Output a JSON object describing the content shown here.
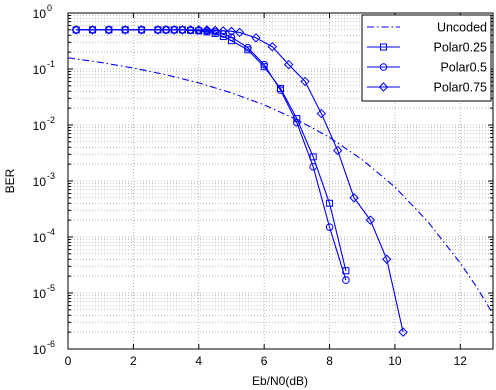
{
  "chart_data": {
    "type": "line",
    "xlabel": "Eb/N0(dB)",
    "ylabel": "BER",
    "xlim": [
      0,
      13
    ],
    "ylim": [
      1e-06,
      1
    ],
    "yscale": "log",
    "grid": true,
    "legend_position": "top-right",
    "x_ticks": [
      0,
      2,
      4,
      6,
      8,
      10,
      12
    ],
    "x_tick_labels": [
      "0",
      "2",
      "4",
      "6",
      "8",
      "10",
      "12"
    ],
    "y_ticks": [
      {
        "value": 1,
        "base": "10",
        "exp": "0"
      },
      {
        "value": 0.1,
        "base": "10",
        "exp": "-1"
      },
      {
        "value": 0.01,
        "base": "10",
        "exp": "-2"
      },
      {
        "value": 0.001,
        "base": "10",
        "exp": "-3"
      },
      {
        "value": 0.0001,
        "base": "10",
        "exp": "-4"
      },
      {
        "value": 1e-05,
        "base": "10",
        "exp": "-5"
      },
      {
        "value": 1e-06,
        "base": "10",
        "exp": "-6"
      }
    ],
    "colors": {
      "series": "#0000ff",
      "grid": "#9a9a9a",
      "axes": "#000000"
    },
    "series": [
      {
        "name": "Uncoded",
        "style": "dashdot",
        "marker": "none",
        "x": [
          0,
          1,
          2,
          3,
          4,
          5,
          6,
          7,
          8,
          9,
          10,
          11,
          12,
          12.5,
          13
        ],
        "y": [
          0.1587,
          0.1309,
          0.104,
          0.0789,
          0.0565,
          0.0375,
          0.0229,
          0.0125,
          0.006,
          0.0024,
          0.00078,
          0.00019,
          3.43e-05,
          1.28e-05,
          4.2e-06
        ]
      },
      {
        "name": "Polar0.25",
        "style": "solid",
        "marker": "square",
        "x": [
          0.25,
          0.75,
          1.25,
          1.75,
          2.25,
          2.75,
          3.0,
          3.25,
          3.5,
          3.75,
          4.0,
          4.25,
          4.5,
          4.75,
          5.0,
          5.5,
          6.0,
          6.5,
          7.0,
          7.5,
          8.0,
          8.5
        ],
        "y": [
          0.5,
          0.5,
          0.5,
          0.5,
          0.5,
          0.5,
          0.5,
          0.5,
          0.5,
          0.49,
          0.48,
          0.46,
          0.43,
          0.38,
          0.32,
          0.22,
          0.11,
          0.045,
          0.013,
          0.0027,
          0.0004,
          2.5e-05
        ]
      },
      {
        "name": "Polar0.5",
        "style": "solid",
        "marker": "circle",
        "x": [
          0.25,
          0.75,
          1.25,
          1.75,
          2.25,
          2.75,
          3.0,
          3.25,
          3.5,
          3.75,
          4.0,
          4.25,
          4.5,
          4.75,
          5.0,
          5.5,
          6.0,
          6.5,
          7.0,
          7.5,
          8.0,
          8.5
        ],
        "y": [
          0.5,
          0.5,
          0.5,
          0.5,
          0.5,
          0.5,
          0.5,
          0.5,
          0.5,
          0.49,
          0.49,
          0.48,
          0.46,
          0.42,
          0.37,
          0.24,
          0.12,
          0.042,
          0.011,
          0.0018,
          0.00015,
          1.7e-05
        ]
      },
      {
        "name": "Polar0.75",
        "style": "solid",
        "marker": "diamond",
        "x": [
          0.25,
          0.75,
          1.25,
          1.75,
          2.25,
          2.75,
          3.0,
          3.25,
          3.5,
          3.75,
          4.0,
          4.25,
          4.5,
          4.75,
          5.0,
          5.25,
          5.75,
          6.25,
          6.75,
          7.25,
          7.75,
          8.25,
          8.75,
          9.25,
          9.75,
          10.25
        ],
        "y": [
          0.5,
          0.5,
          0.5,
          0.5,
          0.5,
          0.5,
          0.5,
          0.5,
          0.5,
          0.5,
          0.5,
          0.5,
          0.49,
          0.48,
          0.47,
          0.45,
          0.36,
          0.25,
          0.12,
          0.06,
          0.016,
          0.0035,
          0.0005,
          0.0002,
          4e-05,
          2e-06
        ]
      }
    ]
  }
}
